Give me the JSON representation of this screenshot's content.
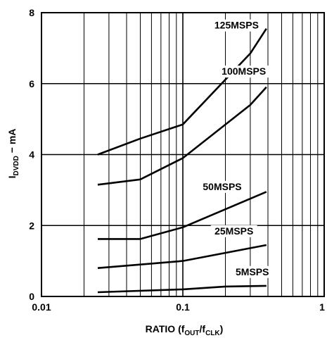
{
  "chart_data": {
    "type": "line",
    "xscale": "log",
    "xlim": [
      0.01,
      1
    ],
    "ylim": [
      0,
      8
    ],
    "grid": true,
    "xticks": [
      "0.01",
      "0.1",
      "1"
    ],
    "yticks": [
      "0",
      "2",
      "4",
      "6",
      "8"
    ],
    "xlabel": {
      "prefix": "RATIO (f",
      "sub1": "OUT",
      "mid": "/f",
      "sub2": "CLK",
      "suffix": ")"
    },
    "ylabel": {
      "prefix": "I",
      "sub": "DVDD",
      "suffix": " − mA"
    },
    "series": [
      {
        "name": "125MSPS",
        "x": [
          0.025,
          0.05,
          0.1,
          0.3,
          0.39
        ],
        "y": [
          4.0,
          4.45,
          4.85,
          6.85,
          7.55
        ]
      },
      {
        "name": "100MSPS",
        "x": [
          0.025,
          0.05,
          0.1,
          0.3,
          0.39
        ],
        "y": [
          3.15,
          3.3,
          3.9,
          5.4,
          5.9
        ]
      },
      {
        "name": "50MSPS",
        "x": [
          0.025,
          0.05,
          0.1,
          0.39
        ],
        "y": [
          1.62,
          1.62,
          1.95,
          2.95
        ]
      },
      {
        "name": "25MSPS",
        "x": [
          0.025,
          0.1,
          0.39
        ],
        "y": [
          0.8,
          1.0,
          1.45
        ]
      },
      {
        "name": "5MSPS",
        "x": [
          0.025,
          0.1,
          0.2,
          0.39
        ],
        "y": [
          0.12,
          0.2,
          0.28,
          0.3
        ]
      }
    ]
  }
}
